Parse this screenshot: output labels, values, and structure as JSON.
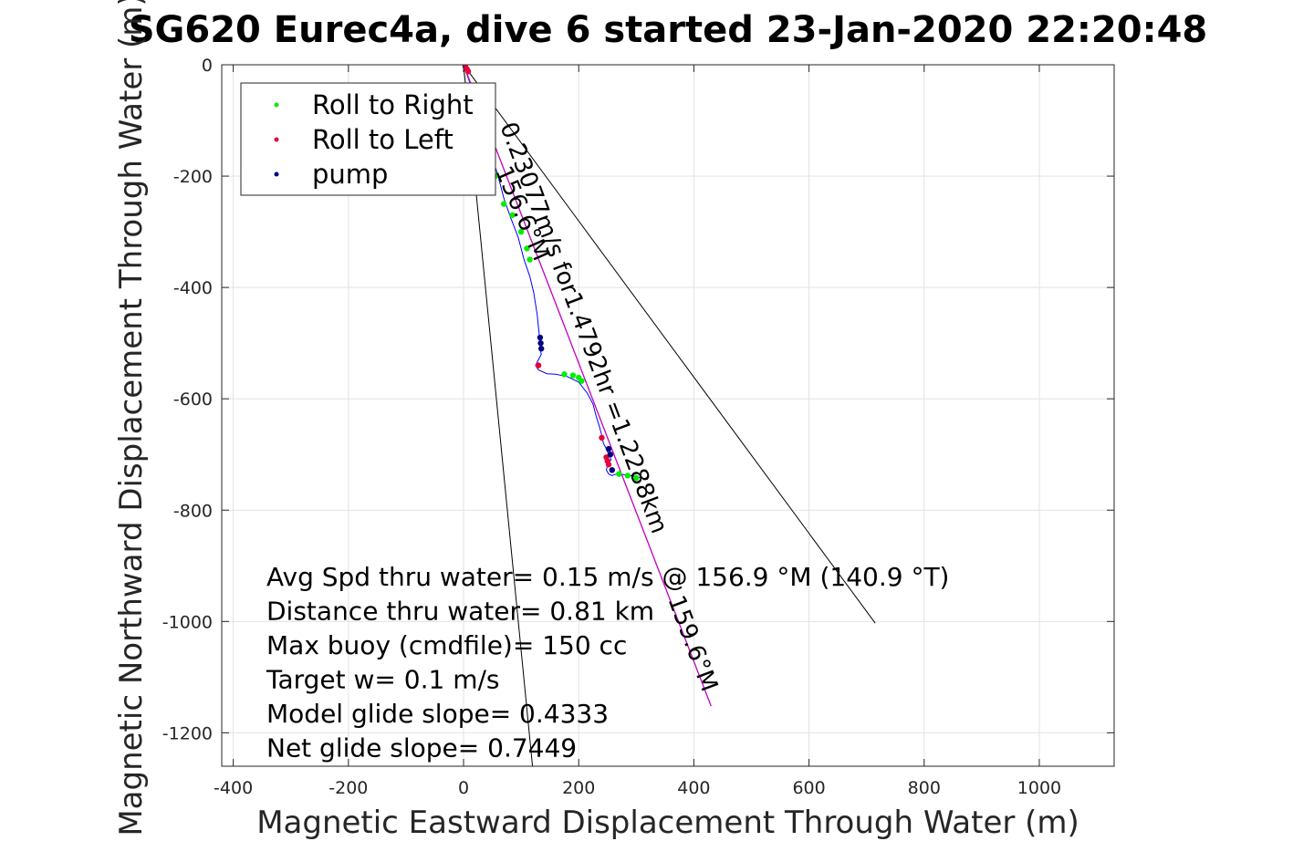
{
  "chart_data": {
    "type": "line",
    "title": "SG620 Eurec4a, dive 6 started 23-Jan-2020 22:20:48",
    "xlabel": "Magnetic Eastward Displacement Through Water (m)",
    "ylabel": "Magnetic Northward Displacement Through Water (m)",
    "xlim": [
      -420,
      1130
    ],
    "ylim": [
      -1260,
      0
    ],
    "xticks": [
      -400,
      -200,
      0,
      200,
      400,
      600,
      800,
      1000
    ],
    "yticks": [
      0,
      -200,
      -400,
      -600,
      -800,
      -1000,
      -1200
    ],
    "grid": true,
    "legend": {
      "position": "top-left",
      "entries": [
        {
          "label": "Roll to Right",
          "color": "#00ee00"
        },
        {
          "label": "Roll to Left",
          "color": "#e8003a"
        },
        {
          "label": "pump",
          "color": "#000080"
        }
      ]
    },
    "annotations": [
      "Avg Spd thru water=  0.15 m/s @ 156.9 °M (140.9 °T)",
      "Distance thru water=  0.81 km",
      "Max buoy (cmdfile)= 150 cc",
      "Target w= 0.1 m/s",
      "Model glide slope= 0.4333",
      "Net glide slope= 0.7449"
    ],
    "rotated_labels": [
      {
        "text": "0.23077m/s for1.4792hr =1.2288km",
        "color": "#000000"
      },
      {
        "text": "159.6°M",
        "color": "#000000"
      },
      {
        "text": "156.6°M",
        "color": "#000000"
      }
    ],
    "series": [
      {
        "name": "",
        "kind": "track",
        "color": "#0000ff",
        "x": [
          0,
          5,
          12,
          22,
          35,
          48,
          60,
          70,
          82,
          95,
          105,
          115,
          122,
          125,
          128,
          130,
          132,
          133,
          135,
          130,
          125,
          130,
          145,
          160,
          180,
          200,
          215,
          225,
          230,
          236,
          240,
          243,
          248,
          252,
          255,
          256,
          252,
          250,
          248,
          252,
          258,
          262,
          270,
          290,
          310,
          320
        ],
        "y": [
          0,
          -15,
          -35,
          -60,
          -110,
          -160,
          -200,
          -240,
          -275,
          -310,
          -350,
          -380,
          -410,
          -430,
          -450,
          -470,
          -490,
          -510,
          -520,
          -530,
          -540,
          -548,
          -555,
          -556,
          -560,
          -570,
          -590,
          -610,
          -630,
          -650,
          -665,
          -680,
          -690,
          -700,
          -705,
          -710,
          -715,
          -720,
          -728,
          -735,
          -738,
          -736,
          -735,
          -738,
          -742,
          -745
        ]
      },
      {
        "name": "",
        "kind": "heading-line",
        "color": "#c000c0",
        "x": [
          0,
          430
        ],
        "y": [
          0,
          -1152
        ]
      },
      {
        "name": "",
        "kind": "bound-line",
        "color": "#000000",
        "x": [
          0,
          715
        ],
        "y": [
          0,
          -1003
        ]
      },
      {
        "name": "",
        "kind": "bound-line",
        "color": "#000000",
        "x": [
          0,
          120
        ],
        "y": [
          0,
          -1262
        ]
      },
      {
        "name": "Roll to Right",
        "kind": "markers",
        "color": "#00ee00",
        "x": [
          40,
          55,
          70,
          85,
          100,
          110,
          115,
          175,
          190,
          200,
          205,
          270,
          285,
          300
        ],
        "y": [
          -150,
          -200,
          -250,
          -270,
          -300,
          -330,
          -350,
          -556,
          -558,
          -562,
          -568,
          -735,
          -738,
          -742
        ]
      },
      {
        "name": "Roll to Left",
        "kind": "markers",
        "color": "#e8003a",
        "x": [
          3,
          6,
          8,
          30,
          130,
          248,
          250,
          252,
          240
        ],
        "y": [
          -3,
          -8,
          -12,
          -190,
          -540,
          -705,
          -712,
          -718,
          -670
        ]
      },
      {
        "name": "pump",
        "kind": "markers",
        "color": "#000080",
        "x": [
          133,
          134,
          135,
          252,
          255,
          258
        ],
        "y": [
          -490,
          -500,
          -510,
          -690,
          -700,
          -728
        ]
      }
    ]
  }
}
